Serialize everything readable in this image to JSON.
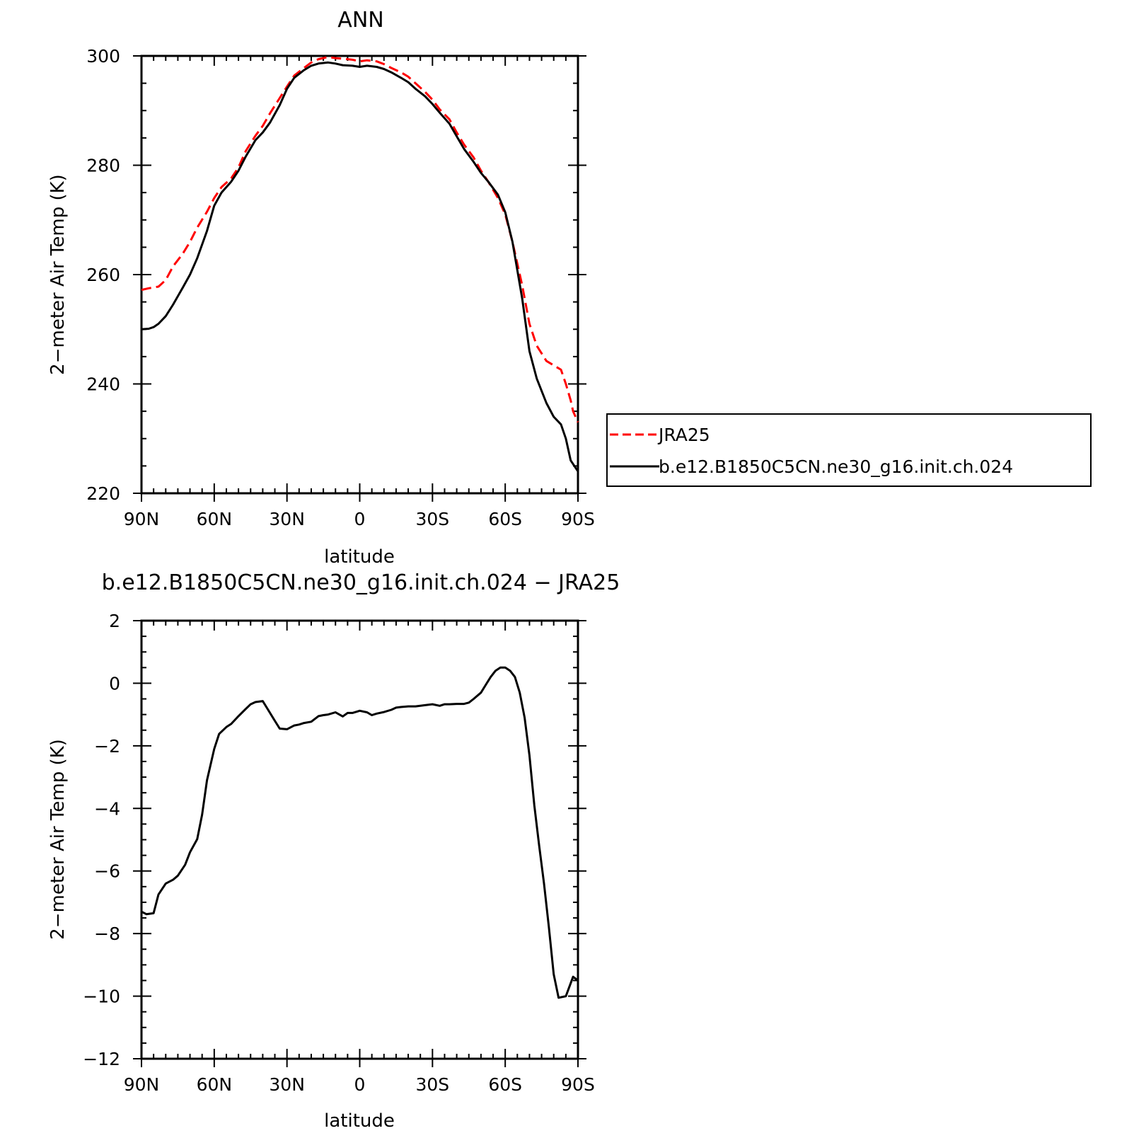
{
  "chart_data": [
    {
      "type": "line",
      "title": "ANN",
      "xlabel": "latitude",
      "ylabel": "2−meter Air Temp (K)",
      "xlim": [
        90,
        -90
      ],
      "ylim": [
        220,
        300
      ],
      "xticks": [
        90,
        60,
        30,
        0,
        -30,
        -60,
        -90
      ],
      "xtick_labels": [
        "90N",
        "60N",
        "30N",
        "0",
        "30S",
        "60S",
        "90S"
      ],
      "yticks": [
        220,
        240,
        260,
        280,
        300
      ],
      "ytick_labels": [
        "220",
        "240",
        "260",
        "280",
        "300"
      ],
      "grid": false,
      "legend": "right",
      "series": [
        {
          "name": "JRA25",
          "color": "#ff0000",
          "dash": true,
          "x": [
            90,
            87,
            83,
            80,
            77,
            73,
            70,
            67,
            63,
            60,
            57,
            53,
            50,
            47,
            43,
            40,
            37,
            33,
            30,
            27,
            23,
            20,
            17,
            13,
            10,
            7,
            3,
            0,
            -3,
            -7,
            -10,
            -13,
            -17,
            -20,
            -23,
            -27,
            -30,
            -33,
            -37,
            -40,
            -43,
            -47,
            -50,
            -53,
            -57,
            -60,
            -63,
            -67,
            -70,
            -73,
            -77,
            -80,
            -83,
            -85,
            -87,
            -88,
            -90
          ],
          "y": [
            257.2,
            257.5,
            257.8,
            259.0,
            261.5,
            263.8,
            266.0,
            268.6,
            271.5,
            274.0,
            276.0,
            277.6,
            279.6,
            282.6,
            285.4,
            287.2,
            289.5,
            292.3,
            294.4,
            296.4,
            297.8,
            298.8,
            299.4,
            299.8,
            299.6,
            299.5,
            299.3,
            299.0,
            299.2,
            299.0,
            298.5,
            297.8,
            297.0,
            296.2,
            295.0,
            293.4,
            292.0,
            290.2,
            288.4,
            286.0,
            283.8,
            281.4,
            279.0,
            277.0,
            274.0,
            271.0,
            266.0,
            258.0,
            251.0,
            247.0,
            244.2,
            243.4,
            242.6,
            240.0,
            237.0,
            235.0,
            233.0
          ]
        },
        {
          "name": "b.e12.B1850C5CN.ne30_g16.init.ch.024",
          "color": "#000000",
          "dash": false,
          "x": [
            90,
            87,
            85,
            83,
            80,
            77,
            73,
            70,
            67,
            63,
            60,
            57,
            53,
            50,
            47,
            43,
            40,
            37,
            33,
            30,
            27,
            23,
            20,
            17,
            13,
            10,
            7,
            3,
            0,
            -3,
            -7,
            -10,
            -13,
            -17,
            -20,
            -23,
            -27,
            -30,
            -33,
            -37,
            -40,
            -43,
            -47,
            -50,
            -53,
            -57,
            -60,
            -63,
            -67,
            -70,
            -73,
            -77,
            -80,
            -83,
            -85,
            -87,
            -90
          ],
          "y": [
            250.0,
            250.1,
            250.4,
            251.0,
            252.4,
            254.5,
            257.6,
            260.0,
            263.0,
            268.0,
            272.6,
            275.0,
            277.0,
            279.0,
            281.6,
            284.6,
            286.0,
            287.8,
            291.0,
            294.0,
            296.0,
            297.4,
            298.2,
            298.6,
            298.8,
            298.6,
            298.3,
            298.2,
            298.0,
            298.2,
            298.0,
            297.6,
            297.0,
            296.0,
            295.2,
            294.0,
            292.6,
            291.2,
            289.6,
            287.6,
            285.3,
            283.0,
            280.6,
            278.6,
            277.0,
            274.6,
            271.4,
            266.0,
            255.6,
            246.0,
            241.0,
            236.5,
            234.0,
            232.6,
            230.0,
            226.0,
            224.0
          ]
        }
      ]
    },
    {
      "type": "line",
      "title": "b.e12.B1850C5CN.ne30_g16.init.ch.024 − JRA25",
      "xlabel": "latitude",
      "ylabel": "2−meter Air Temp (K)",
      "xlim": [
        90,
        -90
      ],
      "ylim": [
        -12,
        2
      ],
      "xticks": [
        90,
        60,
        30,
        0,
        -30,
        -60,
        -90
      ],
      "xtick_labels": [
        "90N",
        "60N",
        "30N",
        "0",
        "30S",
        "60S",
        "90S"
      ],
      "yticks": [
        2,
        0,
        -2,
        -4,
        -6,
        -8,
        -10,
        -12
      ],
      "ytick_labels": [
        "2",
        "0",
        "−2",
        "−4",
        "−6",
        "−8",
        "−10",
        "−12"
      ],
      "grid": false,
      "series": [
        {
          "color": "#000000",
          "dash": false,
          "x": [
            90,
            88,
            85,
            83,
            80,
            77,
            75,
            72,
            70,
            67,
            65,
            63,
            60,
            58,
            55,
            53,
            50,
            47,
            45,
            43,
            40,
            37,
            35,
            33,
            30,
            27,
            25,
            23,
            20,
            17,
            15,
            13,
            10,
            7,
            5,
            3,
            0,
            -3,
            -5,
            -7,
            -10,
            -13,
            -15,
            -17,
            -20,
            -23,
            -25,
            -27,
            -30,
            -33,
            -35,
            -37,
            -40,
            -43,
            -45,
            -47,
            -50,
            -52,
            -54,
            -56,
            -58,
            -60,
            -62,
            -64,
            -66,
            -68,
            -70,
            -72,
            -74,
            -76,
            -78,
            -80,
            -82,
            -85,
            -88,
            -90
          ],
          "y": [
            -7.3,
            -7.38,
            -7.35,
            -6.75,
            -6.4,
            -6.28,
            -6.15,
            -5.8,
            -5.4,
            -4.98,
            -4.2,
            -3.1,
            -2.1,
            -1.62,
            -1.4,
            -1.3,
            -1.05,
            -0.82,
            -0.67,
            -0.6,
            -0.57,
            -0.95,
            -1.2,
            -1.45,
            -1.47,
            -1.35,
            -1.32,
            -1.27,
            -1.23,
            -1.05,
            -1.02,
            -1.0,
            -0.93,
            -1.06,
            -0.95,
            -0.95,
            -0.88,
            -0.93,
            -1.02,
            -0.97,
            -0.92,
            -0.85,
            -0.78,
            -0.76,
            -0.74,
            -0.74,
            -0.72,
            -0.7,
            -0.67,
            -0.72,
            -0.67,
            -0.67,
            -0.66,
            -0.66,
            -0.62,
            -0.5,
            -0.3,
            -0.05,
            0.2,
            0.4,
            0.5,
            0.5,
            0.4,
            0.2,
            -0.3,
            -1.1,
            -2.3,
            -3.9,
            -5.2,
            -6.4,
            -7.8,
            -9.3,
            -10.05,
            -10.0,
            -9.38,
            -9.5
          ]
        }
      ]
    }
  ]
}
